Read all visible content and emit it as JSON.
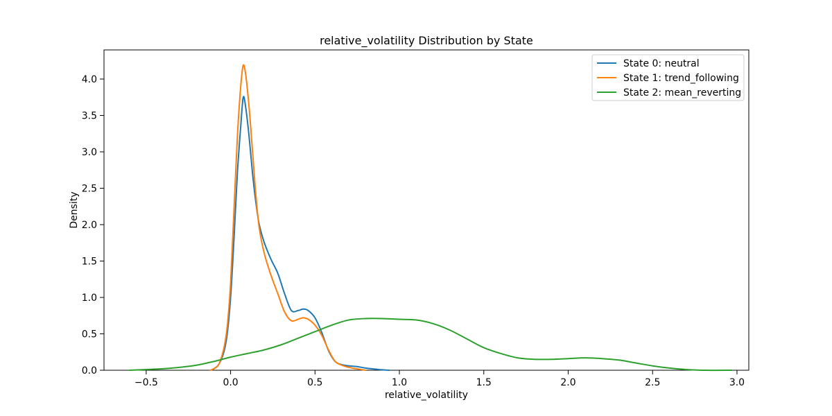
{
  "chart_data": {
    "type": "line",
    "title": "relative_volatility Distribution by State",
    "xlabel": "relative_volatility",
    "ylabel": "Density",
    "xlim": [
      -0.75,
      3.07
    ],
    "ylim": [
      0,
      4.4
    ],
    "x_ticks": [
      -0.5,
      0.0,
      0.5,
      1.0,
      1.5,
      2.0,
      2.5,
      3.0
    ],
    "y_ticks": [
      0.0,
      0.5,
      1.0,
      1.5,
      2.0,
      2.5,
      3.0,
      3.5,
      4.0
    ],
    "grid": false,
    "legend_position": "top-right",
    "series": [
      {
        "name": "State 0: neutral",
        "color": "#1f77b4",
        "points": [
          [
            -0.12,
            0.0
          ],
          [
            -0.1,
            0.02
          ],
          [
            -0.07,
            0.08
          ],
          [
            -0.04,
            0.25
          ],
          [
            -0.02,
            0.5
          ],
          [
            0.0,
            1.0
          ],
          [
            0.02,
            1.8
          ],
          [
            0.04,
            2.7
          ],
          [
            0.06,
            3.35
          ],
          [
            0.075,
            3.75
          ],
          [
            0.09,
            3.6
          ],
          [
            0.11,
            3.2
          ],
          [
            0.13,
            2.7
          ],
          [
            0.15,
            2.3
          ],
          [
            0.17,
            2.0
          ],
          [
            0.2,
            1.75
          ],
          [
            0.24,
            1.52
          ],
          [
            0.28,
            1.33
          ],
          [
            0.32,
            1.05
          ],
          [
            0.36,
            0.82
          ],
          [
            0.4,
            0.82
          ],
          [
            0.43,
            0.84
          ],
          [
            0.46,
            0.82
          ],
          [
            0.5,
            0.72
          ],
          [
            0.54,
            0.52
          ],
          [
            0.58,
            0.27
          ],
          [
            0.62,
            0.12
          ],
          [
            0.67,
            0.07
          ],
          [
            0.75,
            0.05
          ],
          [
            0.8,
            0.03
          ],
          [
            0.88,
            0.01
          ],
          [
            0.94,
            0.0
          ]
        ]
      },
      {
        "name": "State 1: trend_following",
        "color": "#ff7f0e",
        "points": [
          [
            -0.12,
            0.0
          ],
          [
            -0.1,
            0.02
          ],
          [
            -0.07,
            0.08
          ],
          [
            -0.04,
            0.3
          ],
          [
            -0.02,
            0.6
          ],
          [
            0.0,
            1.2
          ],
          [
            0.02,
            2.2
          ],
          [
            0.04,
            3.2
          ],
          [
            0.06,
            3.9
          ],
          [
            0.075,
            4.19
          ],
          [
            0.09,
            4.05
          ],
          [
            0.11,
            3.6
          ],
          [
            0.13,
            3.0
          ],
          [
            0.15,
            2.4
          ],
          [
            0.17,
            1.95
          ],
          [
            0.2,
            1.6
          ],
          [
            0.24,
            1.3
          ],
          [
            0.28,
            1.05
          ],
          [
            0.32,
            0.8
          ],
          [
            0.36,
            0.68
          ],
          [
            0.4,
            0.7
          ],
          [
            0.43,
            0.72
          ],
          [
            0.46,
            0.7
          ],
          [
            0.5,
            0.62
          ],
          [
            0.54,
            0.48
          ],
          [
            0.58,
            0.28
          ],
          [
            0.62,
            0.12
          ],
          [
            0.67,
            0.06
          ],
          [
            0.72,
            0.03
          ],
          [
            0.8,
            0.0
          ]
        ]
      },
      {
        "name": "State 2: mean_reverting",
        "color": "#2ca02c",
        "points": [
          [
            -0.6,
            0.0
          ],
          [
            -0.5,
            0.01
          ],
          [
            -0.4,
            0.02
          ],
          [
            -0.3,
            0.04
          ],
          [
            -0.2,
            0.07
          ],
          [
            -0.1,
            0.12
          ],
          [
            0.0,
            0.18
          ],
          [
            0.1,
            0.23
          ],
          [
            0.2,
            0.28
          ],
          [
            0.3,
            0.35
          ],
          [
            0.4,
            0.44
          ],
          [
            0.5,
            0.53
          ],
          [
            0.6,
            0.62
          ],
          [
            0.7,
            0.69
          ],
          [
            0.8,
            0.71
          ],
          [
            0.9,
            0.71
          ],
          [
            1.0,
            0.7
          ],
          [
            1.1,
            0.69
          ],
          [
            1.2,
            0.64
          ],
          [
            1.3,
            0.55
          ],
          [
            1.4,
            0.43
          ],
          [
            1.5,
            0.31
          ],
          [
            1.6,
            0.23
          ],
          [
            1.7,
            0.17
          ],
          [
            1.8,
            0.15
          ],
          [
            1.9,
            0.15
          ],
          [
            2.0,
            0.16
          ],
          [
            2.1,
            0.17
          ],
          [
            2.2,
            0.16
          ],
          [
            2.3,
            0.14
          ],
          [
            2.4,
            0.1
          ],
          [
            2.5,
            0.06
          ],
          [
            2.6,
            0.03
          ],
          [
            2.7,
            0.01
          ],
          [
            2.8,
            0.0
          ],
          [
            2.97,
            0.0
          ]
        ]
      }
    ]
  }
}
